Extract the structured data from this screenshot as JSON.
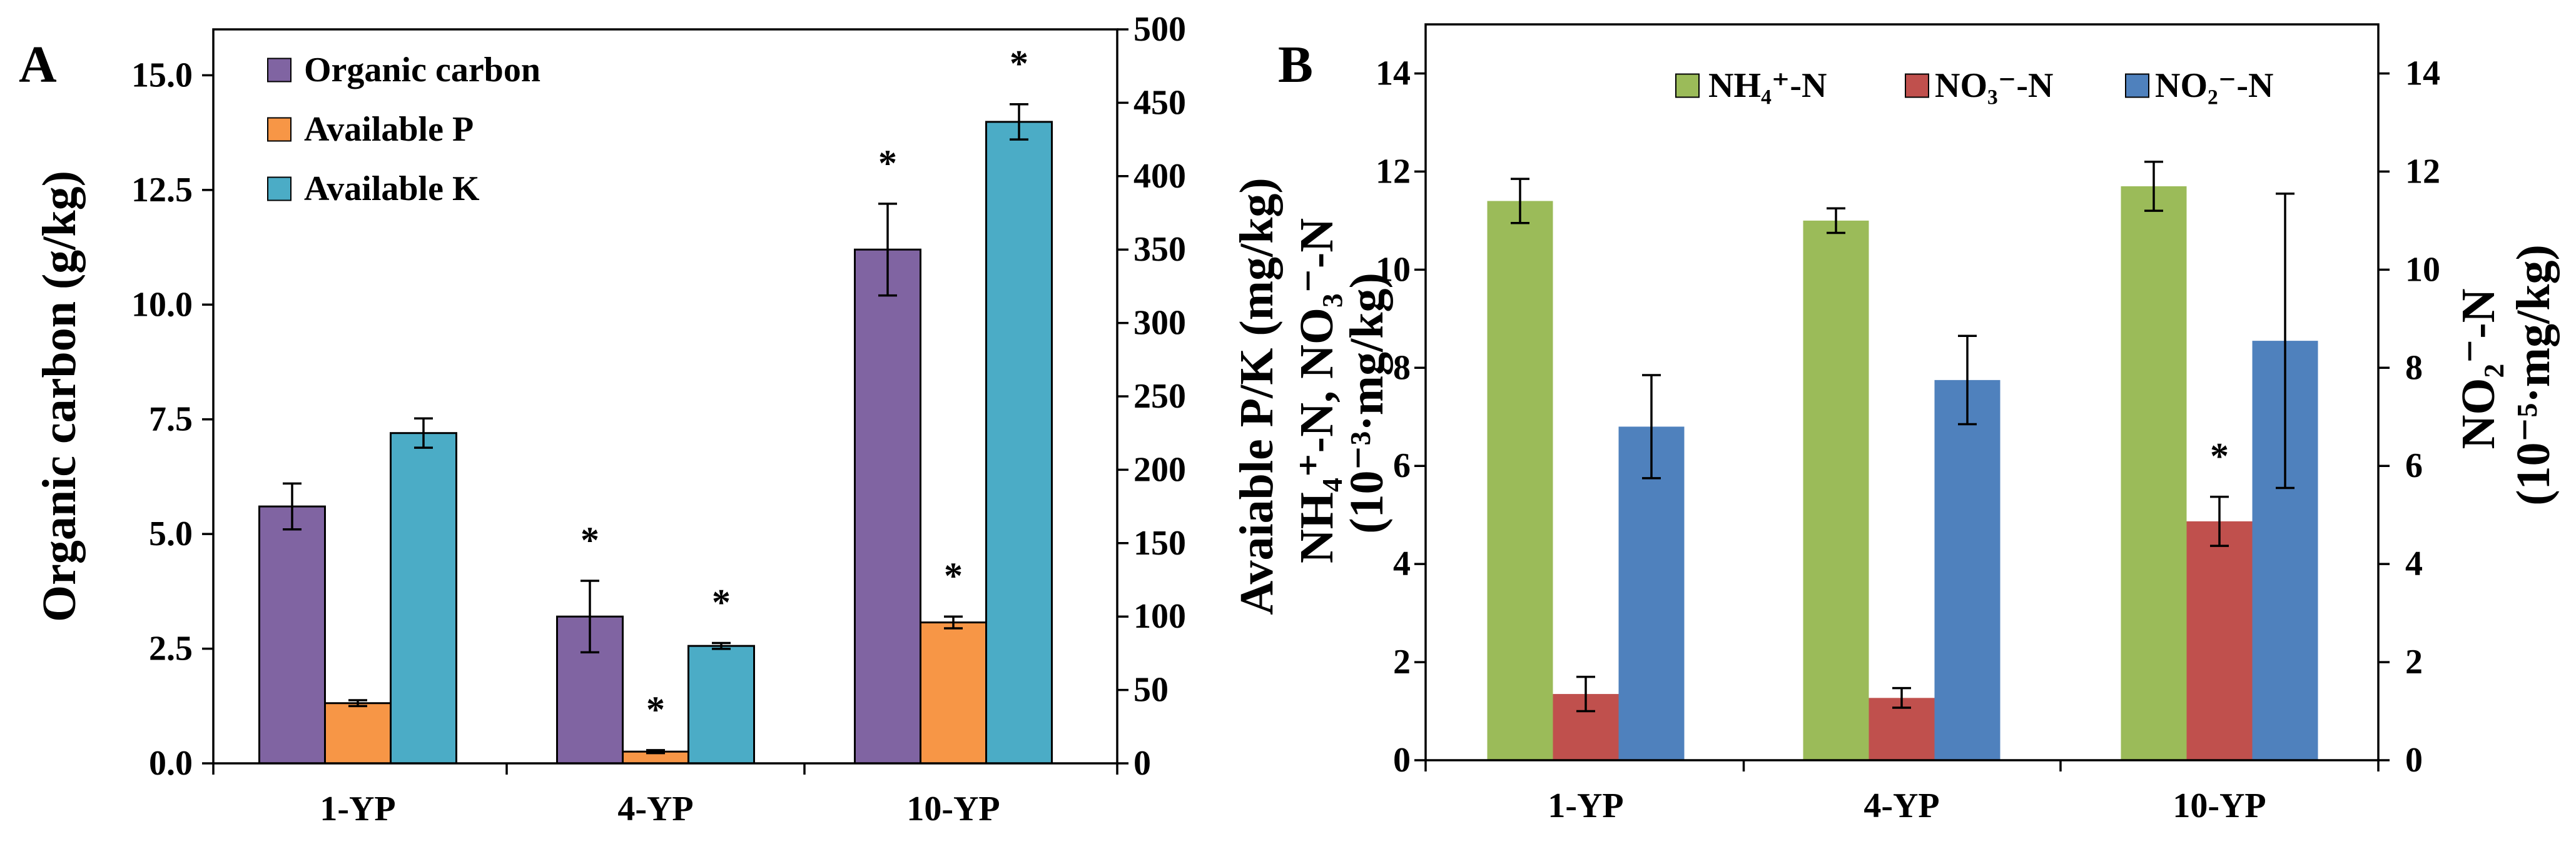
{
  "figure": {
    "panel_a": "A",
    "panel_b": "B"
  },
  "chart_data": [
    {
      "panel": "A",
      "type": "bar",
      "categories": [
        "1-YP",
        "4-YP",
        "10-YP"
      ],
      "series": [
        {
          "name": "Organic carbon",
          "axis": "left",
          "color": "#8064A2",
          "values": [
            5.6,
            3.2,
            11.2
          ],
          "errors": [
            0.5,
            0.78,
            1.0
          ],
          "significant": [
            false,
            true,
            true
          ]
        },
        {
          "name": "Available P",
          "axis": "right",
          "color": "#F79646",
          "values": [
            41,
            8,
            96
          ],
          "errors": [
            2,
            1,
            4
          ],
          "significant": [
            false,
            true,
            true
          ]
        },
        {
          "name": "Available K",
          "axis": "right",
          "color": "#4BACC6",
          "values": [
            225,
            80,
            437
          ],
          "errors": [
            10,
            2,
            12
          ],
          "significant": [
            false,
            true,
            true
          ]
        }
      ],
      "ylabel": "Organic carbon (g/kg)",
      "ylabel_right": "Avaiable P/K (mg/kg)",
      "ylim": [
        0,
        16
      ],
      "ylim_right": [
        0,
        500
      ],
      "yticks": [
        "0.0",
        "2.5",
        "5.0",
        "7.5",
        "10.0",
        "12.5",
        "15.0"
      ],
      "yticks_right": [
        "0",
        "50",
        "100",
        "150",
        "200",
        "250",
        "300",
        "350",
        "400",
        "450",
        "500"
      ],
      "significance_marker": "*",
      "legend": "top-left",
      "grid": false
    },
    {
      "panel": "B",
      "type": "bar",
      "categories": [
        "1-YP",
        "4-YP",
        "10-YP"
      ],
      "series": [
        {
          "name": "NH₄⁺-N",
          "axis": "left",
          "color": "#9BBB59",
          "values": [
            11.4,
            11.0,
            11.7
          ],
          "errors": [
            0.45,
            0.25,
            0.5
          ],
          "significant": [
            false,
            false,
            false
          ]
        },
        {
          "name": "NO₃⁻-N",
          "axis": "left",
          "color": "#C0504D",
          "values": [
            1.35,
            1.27,
            4.87
          ],
          "errors": [
            0.35,
            0.2,
            0.5
          ],
          "significant": [
            false,
            false,
            true
          ]
        },
        {
          "name": "NO₂⁻-N",
          "axis": "right",
          "color": "#4F81BD",
          "values": [
            6.8,
            7.75,
            8.55
          ],
          "errors": [
            1.05,
            0.9,
            3.0
          ],
          "significant": [
            false,
            false,
            false
          ]
        }
      ],
      "ylabel": [
        "NH₄⁺-N, NO₃⁻-N",
        "(10⁻³·mg/kg)"
      ],
      "ylabel_right": [
        "NO₂⁻-N",
        "(10⁻⁵·mg/kg)"
      ],
      "ylim": [
        0,
        15
      ],
      "ylim_right": [
        0,
        15
      ],
      "yticks": [
        "0",
        "2",
        "4",
        "6",
        "8",
        "10",
        "12",
        "14"
      ],
      "yticks_right": [
        "0",
        "2",
        "4",
        "6",
        "8",
        "10",
        "12",
        "14"
      ],
      "significance_marker": "*",
      "legend": "top",
      "grid": false
    }
  ]
}
